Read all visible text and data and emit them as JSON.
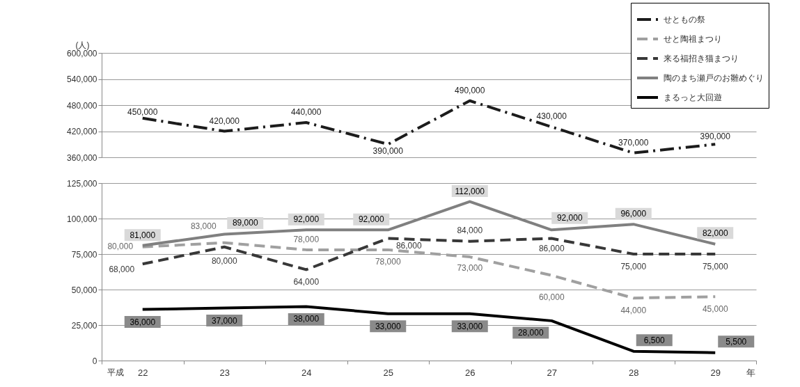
{
  "chart_data": [
    {
      "type": "line",
      "categories": [
        "22",
        "23",
        "24",
        "25",
        "26",
        "27",
        "28",
        "29"
      ],
      "tick_labels": "y",
      "ylabel": "(人)",
      "ylim": [
        360000,
        600000
      ],
      "yticks": [
        {
          "value": 360000,
          "label": "360,000"
        },
        {
          "value": 420000,
          "label": "420,000"
        },
        {
          "value": 480000,
          "label": "480,000"
        },
        {
          "value": 540000,
          "label": "540,000"
        },
        {
          "value": 600000,
          "label": "600,000"
        }
      ],
      "grid": "y",
      "legend": "top right",
      "series": [
        {
          "name": "せともの祭",
          "color": "#1c1c1c",
          "line_style": "dashdot",
          "values": [
            450000,
            420000,
            440000,
            390000,
            490000,
            430000,
            370000,
            390000
          ],
          "value_labels": [
            "450,000",
            "420,000",
            "440,000",
            "390,000",
            "490,000",
            "430,000",
            "370,000",
            "390,000"
          ]
        }
      ]
    },
    {
      "type": "line",
      "categories": [
        "22",
        "23",
        "24",
        "25",
        "26",
        "27",
        "28",
        "29"
      ],
      "xlabel": "年",
      "annotations": [
        "平成"
      ],
      "ylim": [
        0,
        125000
      ],
      "yticks": [
        0,
        {
          "value": 25000,
          "label": "25,000"
        },
        {
          "value": 50000,
          "label": "50,000"
        },
        {
          "value": 75000,
          "label": "75,000"
        },
        {
          "value": 100000,
          "label": "100,000"
        },
        {
          "value": 125000,
          "label": "125,000"
        }
      ],
      "grid": "y",
      "legend": "top right",
      "series": [
        {
          "name": "せと陶祖まつり",
          "color": "#a0a0a0",
          "line_style": "dashed",
          "values": [
            80000,
            83000,
            78000,
            78000,
            73000,
            60000,
            44000,
            45000
          ],
          "value_labels": [
            "80,000",
            "83,000",
            "78,000",
            "78,000",
            "73,000",
            "60,000",
            "44,000",
            "45,000"
          ]
        },
        {
          "name": "来る福招き猫まつり",
          "color": "#383838",
          "line_style": "dashed",
          "values": [
            68000,
            80000,
            64000,
            86000,
            84000,
            86000,
            75000,
            75000
          ],
          "value_labels": [
            "68,000",
            "80,000",
            "64,000",
            "86,000",
            "84,000",
            "86,000",
            "75,000",
            "75,000"
          ]
        },
        {
          "name": "陶のまち瀬戸のお雛めぐり",
          "color": "#808080",
          "line_style": "solid",
          "values": [
            81000,
            89000,
            92000,
            92000,
            112000,
            92000,
            96000,
            82000
          ],
          "value_labels": [
            "81,000",
            "89,000",
            "92,000",
            "92,000",
            "112,000",
            "92,000",
            "96,000",
            "82,000"
          ]
        },
        {
          "name": "まるっと大回遊",
          "color": "#000000",
          "line_style": "solid",
          "values": [
            36000,
            37000,
            38000,
            33000,
            33000,
            28000,
            6500,
            5500
          ],
          "value_labels": [
            "36,000",
            "37,000",
            "38,000",
            "33,000",
            "33,000",
            "28,000",
            "6,500",
            "5,500"
          ]
        }
      ]
    }
  ]
}
